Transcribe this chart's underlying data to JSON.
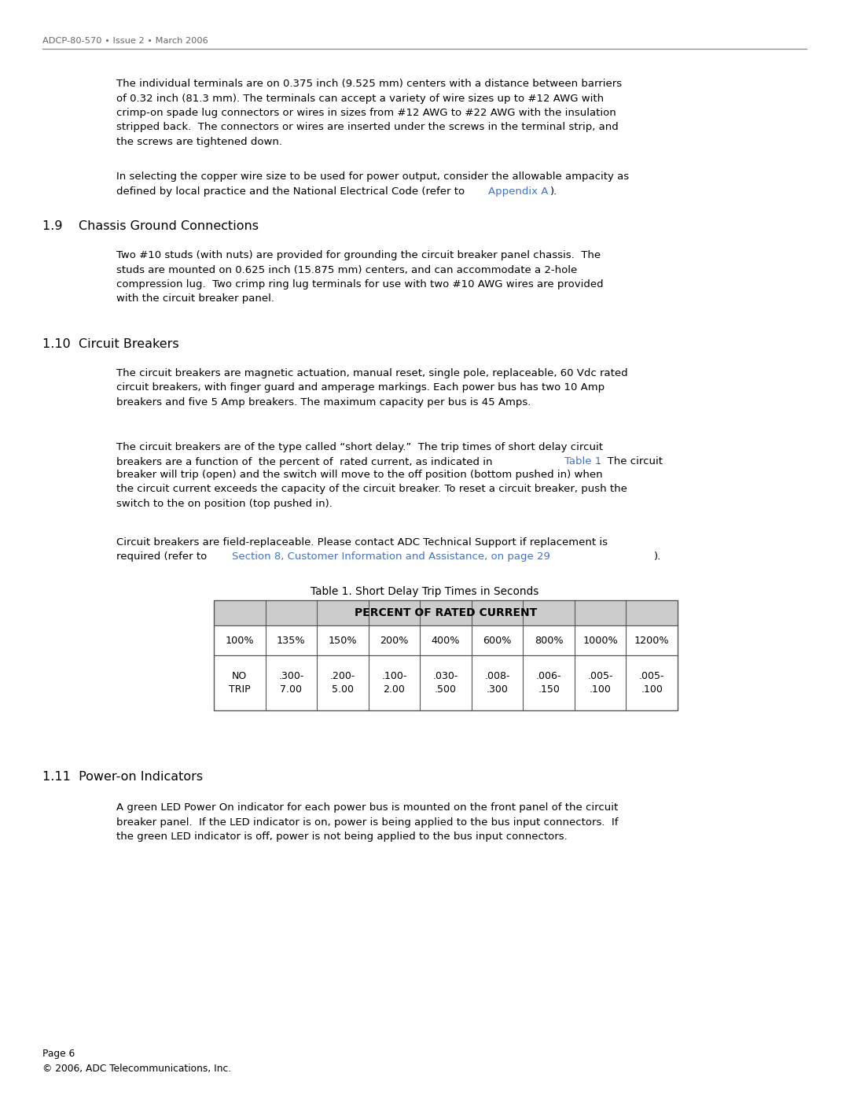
{
  "header_text": "ADCP-80-570 • Issue 2 • March 2006",
  "footer_line1": "Page 6",
  "footer_line2": "© 2006, ADC Telecommunications, Inc.",
  "bg_color": "#ffffff",
  "text_color": "#000000",
  "link_color": "#4472c4",
  "section_19_title": "1.9    Chassis Ground Connections",
  "section_110_title": "1.10  Circuit Breakers",
  "section_111_title": "1.11  Power-on Indicators",
  "table_title": "Table 1. Short Delay Trip Times in Seconds",
  "table_header": "PERCENT OF RATED CURRENT",
  "table_cols": [
    "100%",
    "135%",
    "150%",
    "200%",
    "400%",
    "600%",
    "800%",
    "1000%",
    "1200%"
  ],
  "table_row1": [
    "NO\nTRIP",
    ".300-\n7.00",
    ".200-\n5.00",
    ".100-\n2.00",
    ".030-\n.500",
    ".008-\n.300",
    ".006-\n.150",
    ".005-\n.100",
    ".005-\n.100"
  ]
}
